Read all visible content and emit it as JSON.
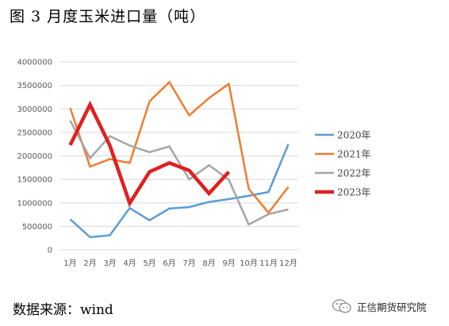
{
  "figure": {
    "title": "图 3  月度玉米进口量（吨）",
    "source": "数据来源：wind",
    "watermark": "正信期货研究院"
  },
  "chart_data": {
    "type": "line",
    "categories": [
      "1月",
      "2月",
      "3月",
      "4月",
      "5月",
      "6月",
      "7月",
      "8月",
      "9月",
      "10月",
      "11月",
      "12月"
    ],
    "ylim": [
      0,
      4000000
    ],
    "yticks": [
      0,
      500000,
      1000000,
      1500000,
      2000000,
      2500000,
      3000000,
      3500000,
      4000000
    ],
    "grid": true,
    "legend_position": "right",
    "series": [
      {
        "name": "2020年",
        "color": "#5B9BD5",
        "width": "normal",
        "values": [
          650000,
          270000,
          310000,
          890000,
          630000,
          880000,
          910000,
          1020000,
          1080000,
          1150000,
          1230000,
          2250000
        ]
      },
      {
        "name": "2021年",
        "color": "#ED7D31",
        "width": "normal",
        "values": [
          3020000,
          1770000,
          1930000,
          1850000,
          3160000,
          3570000,
          2860000,
          3230000,
          3530000,
          1300000,
          790000,
          1340000
        ]
      },
      {
        "name": "2022年",
        "color": "#A5A5A5",
        "width": "normal",
        "values": [
          2750000,
          1950000,
          2420000,
          2220000,
          2080000,
          2200000,
          1500000,
          1800000,
          1490000,
          540000,
          760000,
          860000
        ]
      },
      {
        "name": "2023年",
        "color": "#E02020",
        "width": "bold",
        "values": [
          2230000,
          3090000,
          2220000,
          990000,
          1660000,
          1850000,
          1690000,
          1200000,
          1660000,
          null,
          null,
          null
        ]
      }
    ]
  }
}
